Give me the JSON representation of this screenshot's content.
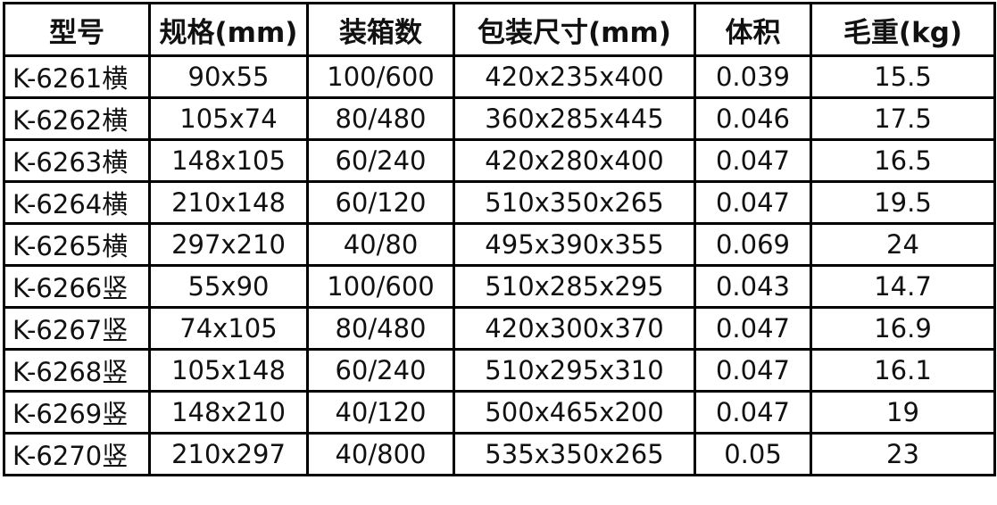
{
  "table": {
    "headers": [
      "型号",
      "规格(mm)",
      "装箱数",
      "包装尺寸(mm)",
      "体积",
      "毛重(kg)"
    ],
    "rows": [
      [
        "K-6261横",
        "90x55",
        "100/600",
        "420x235x400",
        "0.039",
        "15.5"
      ],
      [
        "K-6262横",
        "105x74",
        "80/480",
        "360x285x445",
        "0.046",
        "17.5"
      ],
      [
        "K-6263横",
        "148x105",
        "60/240",
        "420x280x400",
        "0.047",
        "16.5"
      ],
      [
        "K-6264横",
        "210x148",
        "60/120",
        "510x350x265",
        "0.047",
        "19.5"
      ],
      [
        "K-6265横",
        "297x210",
        "40/80",
        "495x390x355",
        "0.069",
        "24"
      ],
      [
        "K-6266竖",
        "55x90",
        "100/600",
        "510x285x295",
        "0.043",
        "14.7"
      ],
      [
        "K-6267竖",
        "74x105",
        "80/480",
        "420x300x370",
        "0.047",
        "16.9"
      ],
      [
        "K-6268竖",
        "105x148",
        "60/240",
        "510x295x310",
        "0.047",
        "16.1"
      ],
      [
        "K-6269竖",
        "148x210",
        "40/120",
        "500x465x200",
        "0.047",
        "19"
      ],
      [
        "K-6270竖",
        "210x297",
        "40/800",
        "535x350x265",
        "0.05",
        "23"
      ]
    ]
  }
}
